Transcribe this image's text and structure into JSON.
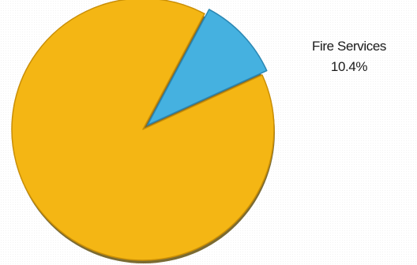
{
  "chart_data": {
    "type": "pie",
    "slices": [
      {
        "label": "Fire Services",
        "value": 10.4,
        "percent_label": "10.4%",
        "color": "#45b1e0",
        "stroke": "#2a86b2",
        "exploded": true
      },
      {
        "label": "",
        "value": 89.6,
        "percent_label": "",
        "color": "#f4b614",
        "stroke": "#c98e06",
        "exploded": false
      }
    ],
    "shadow_color": "#6b5a1c"
  }
}
